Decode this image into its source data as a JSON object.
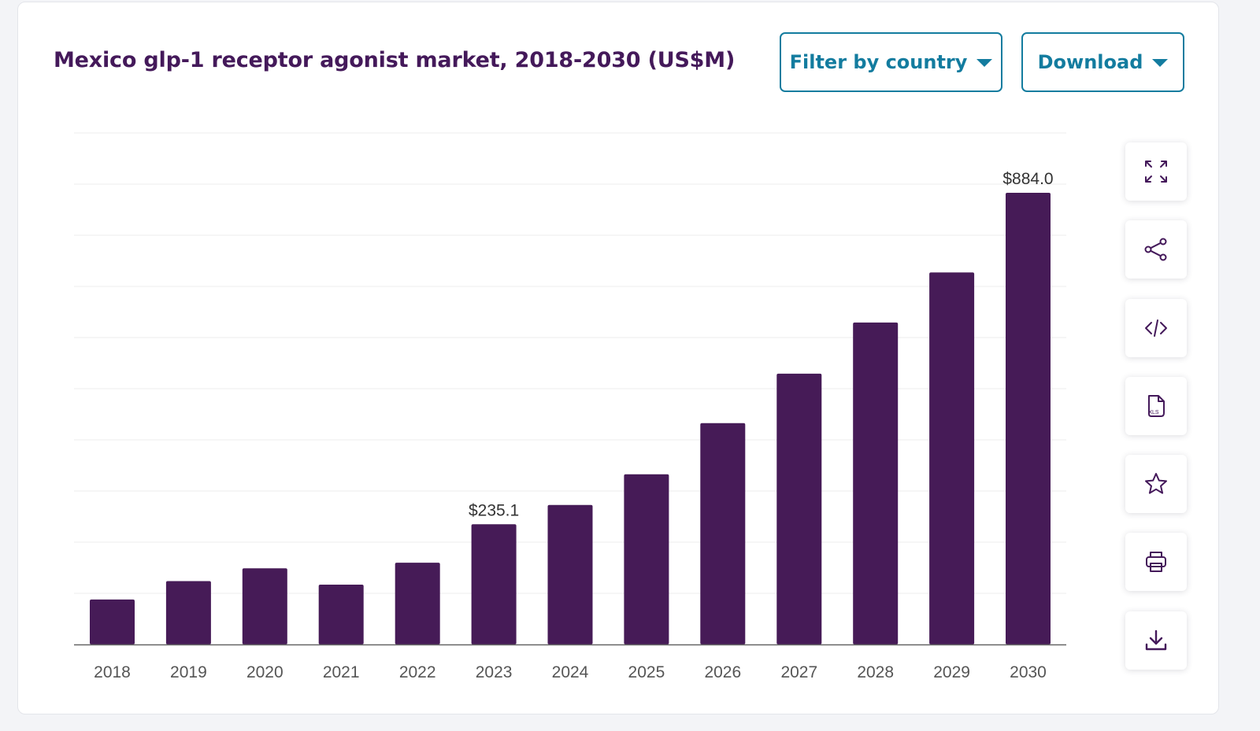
{
  "header": {
    "title": "Mexico glp-1 receptor agonist market, 2018-2030 (US$M)",
    "filter_label": "Filter by country",
    "download_label": "Download"
  },
  "colors": {
    "bar": "#461b57",
    "title": "#44195a",
    "accent": "#137c9f",
    "grid": "#ececec",
    "axis": "#555555"
  },
  "toolbar": {
    "items": [
      {
        "icon": "fullscreen-icon"
      },
      {
        "icon": "share-icon"
      },
      {
        "icon": "embed-code-icon"
      },
      {
        "icon": "xls-file-icon",
        "text": "XLS"
      },
      {
        "icon": "star-icon"
      },
      {
        "icon": "print-icon"
      },
      {
        "icon": "download-icon"
      }
    ]
  },
  "chart_data": {
    "type": "bar",
    "categories": [
      "2018",
      "2019",
      "2020",
      "2021",
      "2022",
      "2023",
      "2024",
      "2025",
      "2026",
      "2027",
      "2028",
      "2029",
      "2030"
    ],
    "values": [
      88,
      124,
      149,
      117,
      160,
      235.1,
      273,
      333,
      433,
      530,
      630,
      728,
      884.0
    ],
    "data_labels": [
      {
        "index": 5,
        "text": "$235.1"
      },
      {
        "index": 12,
        "text": "$884.0"
      }
    ],
    "title": "Mexico glp-1 receptor agonist market, 2018-2030 (US$M)",
    "xlabel": "",
    "ylabel": "",
    "ylim": [
      0,
      884
    ],
    "grid": true,
    "legend": "none"
  }
}
